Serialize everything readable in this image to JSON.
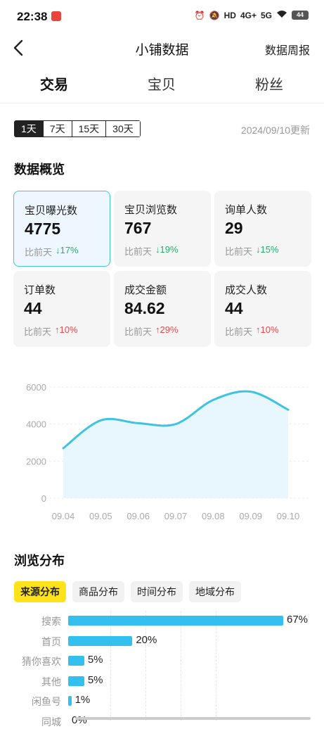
{
  "status_bar": {
    "time": "22:38",
    "network_1": "4G+",
    "network_2": "5G",
    "battery": "44"
  },
  "nav": {
    "title": "小铺数据",
    "right_link": "数据周报"
  },
  "tabs": [
    {
      "label": "交易",
      "active": true
    },
    {
      "label": "宝贝",
      "active": false
    },
    {
      "label": "粉丝",
      "active": false
    }
  ],
  "date_range": {
    "options": [
      "1天",
      "7天",
      "15天",
      "30天"
    ],
    "selected": "1天",
    "update_text": "2024/09/10更新"
  },
  "overview": {
    "title": "数据概览",
    "compare_label": "比前天",
    "cards": [
      {
        "label": "宝贝曝光数",
        "value": "4775",
        "change": "↓17%",
        "direction": "down",
        "selected": true
      },
      {
        "label": "宝贝浏览数",
        "value": "767",
        "change": "↓19%",
        "direction": "down",
        "selected": false
      },
      {
        "label": "询单人数",
        "value": "29",
        "change": "↓15%",
        "direction": "down",
        "selected": false
      },
      {
        "label": "订单数",
        "value": "44",
        "change": "↑10%",
        "direction": "up",
        "selected": false
      },
      {
        "label": "成交金额",
        "value": "84.62",
        "change": "↑29%",
        "direction": "up",
        "selected": false
      },
      {
        "label": "成交人数",
        "value": "44",
        "change": "↑10%",
        "direction": "up",
        "selected": false
      }
    ]
  },
  "colors": {
    "accent_yellow": "#ffe21a",
    "line_blue": "#3ec3e0",
    "area_fill": "#e8f7fd",
    "up_red": "#e84a4a",
    "down_green": "#1eb46b",
    "bar_blue": "#34c0ef"
  },
  "chart_data": {
    "type": "area",
    "x": [
      "09.04",
      "09.05",
      "09.06",
      "09.07",
      "09.08",
      "09.09",
      "09.10"
    ],
    "series": [
      {
        "values": [
          2700,
          4200,
          4050,
          4000,
          5300,
          5750,
          4775
        ]
      }
    ],
    "ylim": [
      0,
      6000
    ],
    "yticks": [
      "0",
      "2000",
      "4000",
      "6000"
    ],
    "grid": true
  },
  "distribution": {
    "title": "浏览分布",
    "tabs": [
      "来源分布",
      "商品分布",
      "时间分布",
      "地域分布"
    ],
    "selected_tab": "来源分布",
    "items": [
      {
        "label": "搜索",
        "percent": 67,
        "text": "67%"
      },
      {
        "label": "首页",
        "percent": 20,
        "text": "20%"
      },
      {
        "label": "猜你喜欢",
        "percent": 5,
        "text": "5%"
      },
      {
        "label": "其他",
        "percent": 5,
        "text": "5%"
      },
      {
        "label": "闲鱼号",
        "percent": 1,
        "text": "1%"
      },
      {
        "label": "同城",
        "percent": 0,
        "text": "0%"
      }
    ]
  }
}
